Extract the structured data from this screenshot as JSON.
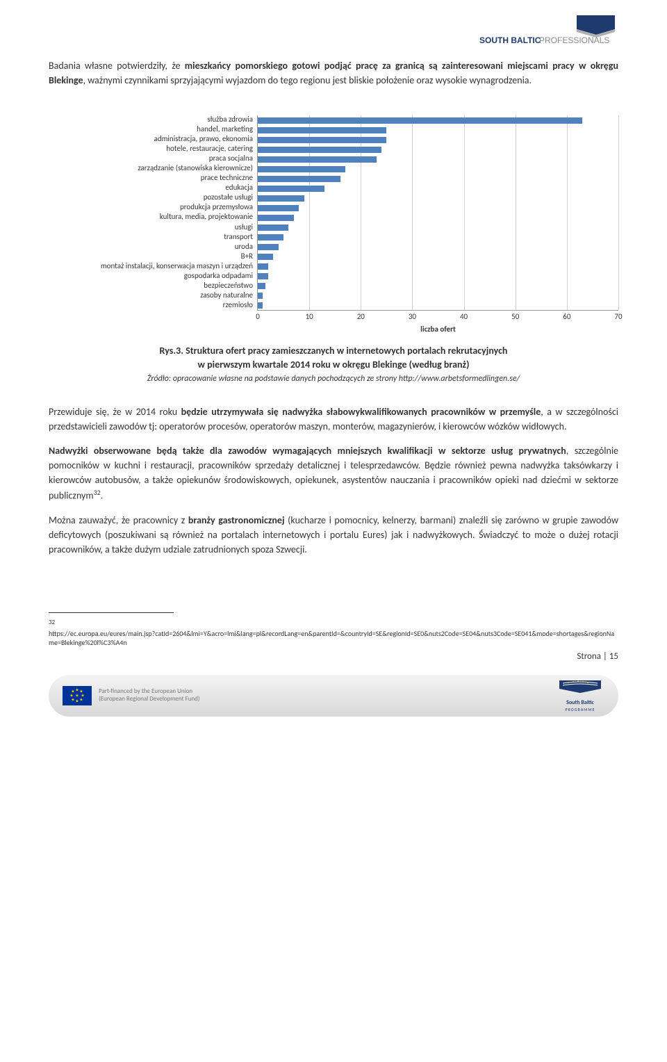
{
  "header": {
    "logo_text_top": "SOUTH BALTIC",
    "logo_text_accent": "PROFESSIONALS"
  },
  "para1_pre": "Badania własne potwierdziły, że ",
  "para1_bold1": "mieszkańcy pomorskiego gotowi podjąć pracę za granicą są zainteresowani miejscami pracy w okręgu Blekinge",
  "para1_post": ", ważnymi czynnikami sprzyjającymi wyjazdom do tego regionu jest bliskie położenie oraz wysokie wynagrodzenia.",
  "chart": {
    "type": "bar",
    "categories": [
      "służba zdrowia",
      "handel, marketing",
      "administracja, prawo, ekonomia",
      "hotele, restauracje, catering",
      "praca socjalna",
      "zarządzanie (stanowiska kierownicze)",
      "prace techniczne",
      "edukacja",
      "pozostałe usługi",
      "produkcja przemysłowa",
      "kultura, media, projektowanie",
      "usługi",
      "transport",
      "uroda",
      "B+R",
      "montaż instalacji, konserwacja maszyn i urządzeń",
      "gospodarka odpadami",
      "bezpieczeństwo",
      "zasoby naturalne",
      "rzemiosło"
    ],
    "values": [
      63,
      25,
      25,
      24,
      23,
      17,
      16,
      13,
      9,
      8,
      7,
      6,
      5,
      4,
      3,
      2,
      2,
      1.5,
      1,
      1
    ],
    "bar_color": "#4f81bd",
    "xlim": [
      0,
      70
    ],
    "xtick_step": 10,
    "xticks": [
      "0",
      "10",
      "20",
      "30",
      "40",
      "50",
      "60",
      "70"
    ],
    "xlabel": "liczba ofert",
    "grid_color": "#d0d0d0",
    "label_fontsize": 11
  },
  "fig_ref": "Rys.3. ",
  "fig_caption_l1": "Struktura ofert pracy zamieszczanych w internetowych portalach rekrutacyjnych",
  "fig_caption_l2": "w pierwszym kwartale 2014 roku w okręgu Blekinge (według branż)",
  "fig_source": "Źródło: opracowanie własne na podstawie danych pochodzących ze strony http://www.arbetsformedlingen.se/",
  "para2_pre": "Przewiduje się, że w 2014 roku ",
  "para2_bold1": "będzie utrzymywała się nadwyżka słabowykwalifikowanych pracowników w przemyśle",
  "para2_post": ", a w szczególności przedstawicieli zawodów tj: operatorów procesów, operatorów maszyn, monterów, magazynierów, i kierowców wózków widłowych.",
  "para3_bold1": "Nadwyżki obserwowane będą także dla zawodów wymagających mniejszych kwalifikacji w sektorze usług prywatnych",
  "para3_post": ", szczególnie pomocników w kuchni i restauracji, pracowników sprzedaży detalicznej i telesprzedawców. Będzie również pewna nadwyżka taksówkarzy i kierowców autobusów, a także opiekunów środowiskowych, opiekunek, asystentów nauczania i pracowników opieki nad dziećmi w sektorze publicznym",
  "para3_sup": "32",
  "para3_end": ".",
  "para4_pre": "Można zauważyć, że pracownicy z ",
  "para4_bold1": "branży gastronomicznej",
  "para4_post": " (kucharze i pomocnicy, kelnerzy, barmani) znaleźli się zarówno w grupie zawodów deficytowych (poszukiwani są również na portalach internetowych i portalu Eures) jak i nadwyżkowych. Świadczyć to może o dużej rotacji pracowników, a także dużym udziale zatrudnionych spoza Szwecji.",
  "footnote_num": "32",
  "footnote_text": "https://ec.europa.eu/eures/main.jsp?catId=2604&lmi=Y&acro=lmi&lang=pl&recordLang=en&parentId=&countryId=SE&regionId=SE0&nuts2Code=SE04&nuts3Code=SE041&mode=shortages&regionName=Blekinge%20l%C3%A4n",
  "footer": {
    "eu_line1": "Part-financed by the European Union",
    "eu_line2": "(European Regional Development Fund)",
    "sb_line1": "South Baltic",
    "sb_line2": "PROGRAMME"
  },
  "page_num": "Strona | 15"
}
